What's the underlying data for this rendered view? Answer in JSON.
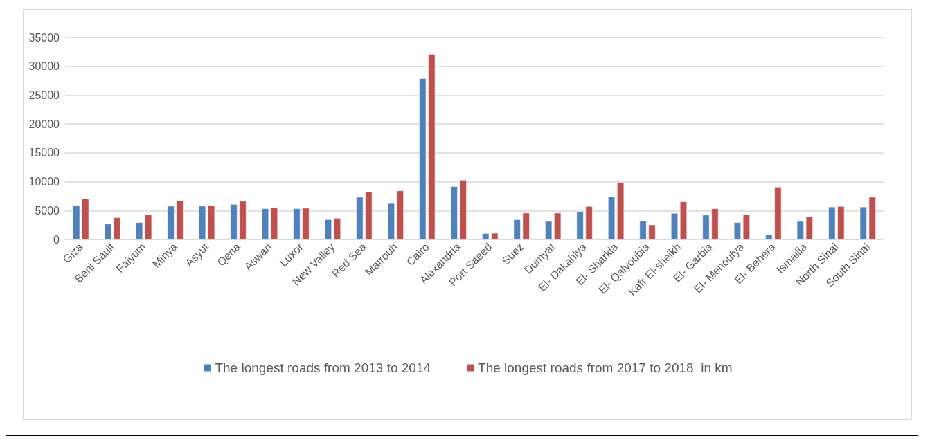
{
  "chart_data": {
    "type": "bar",
    "categories": [
      "Giza",
      "Beni Sauif",
      "Faiyum",
      "Minya",
      "Asyut",
      "Qena",
      "Aswan",
      "Luxor",
      "New Valley",
      "Red Sea",
      "Matrouh",
      "Cairo",
      "Alexandria",
      "Port Saeed",
      "Suez",
      "Dumyat",
      "El- Dakahlya",
      "El- Sharkia",
      "El- Qalyoubia",
      "Kafr El-sheikh",
      "El- Garbia",
      "El- Menoufya",
      "El- Behera",
      "Ismailia",
      "North Sinai",
      "South Sinai"
    ],
    "series": [
      {
        "name": "The longest roads from 2013 to 2014",
        "color": "#4f81bd",
        "values": [
          5900,
          2700,
          2950,
          5800,
          5800,
          6100,
          5350,
          5350,
          3450,
          7350,
          6250,
          27900,
          9200,
          1050,
          3450,
          3150,
          4800,
          7450,
          3200,
          4550,
          4250,
          2950,
          850,
          3150,
          5650,
          5650
        ]
      },
      {
        "name": "The longest roads from 2017 to 2018  in km",
        "color": "#c0504d",
        "values": [
          7050,
          3800,
          4300,
          6700,
          5900,
          6650,
          5550,
          5450,
          3700,
          8300,
          8450,
          32100,
          10300,
          1100,
          4600,
          4600,
          5750,
          9800,
          2550,
          6550,
          5350,
          4350,
          9100,
          3950,
          5750,
          7350
        ]
      }
    ],
    "ylim": [
      0,
      35000
    ],
    "yticks": [
      0,
      5000,
      10000,
      15000,
      20000,
      25000,
      30000,
      35000
    ],
    "grid": "y",
    "legend": "bottom"
  }
}
